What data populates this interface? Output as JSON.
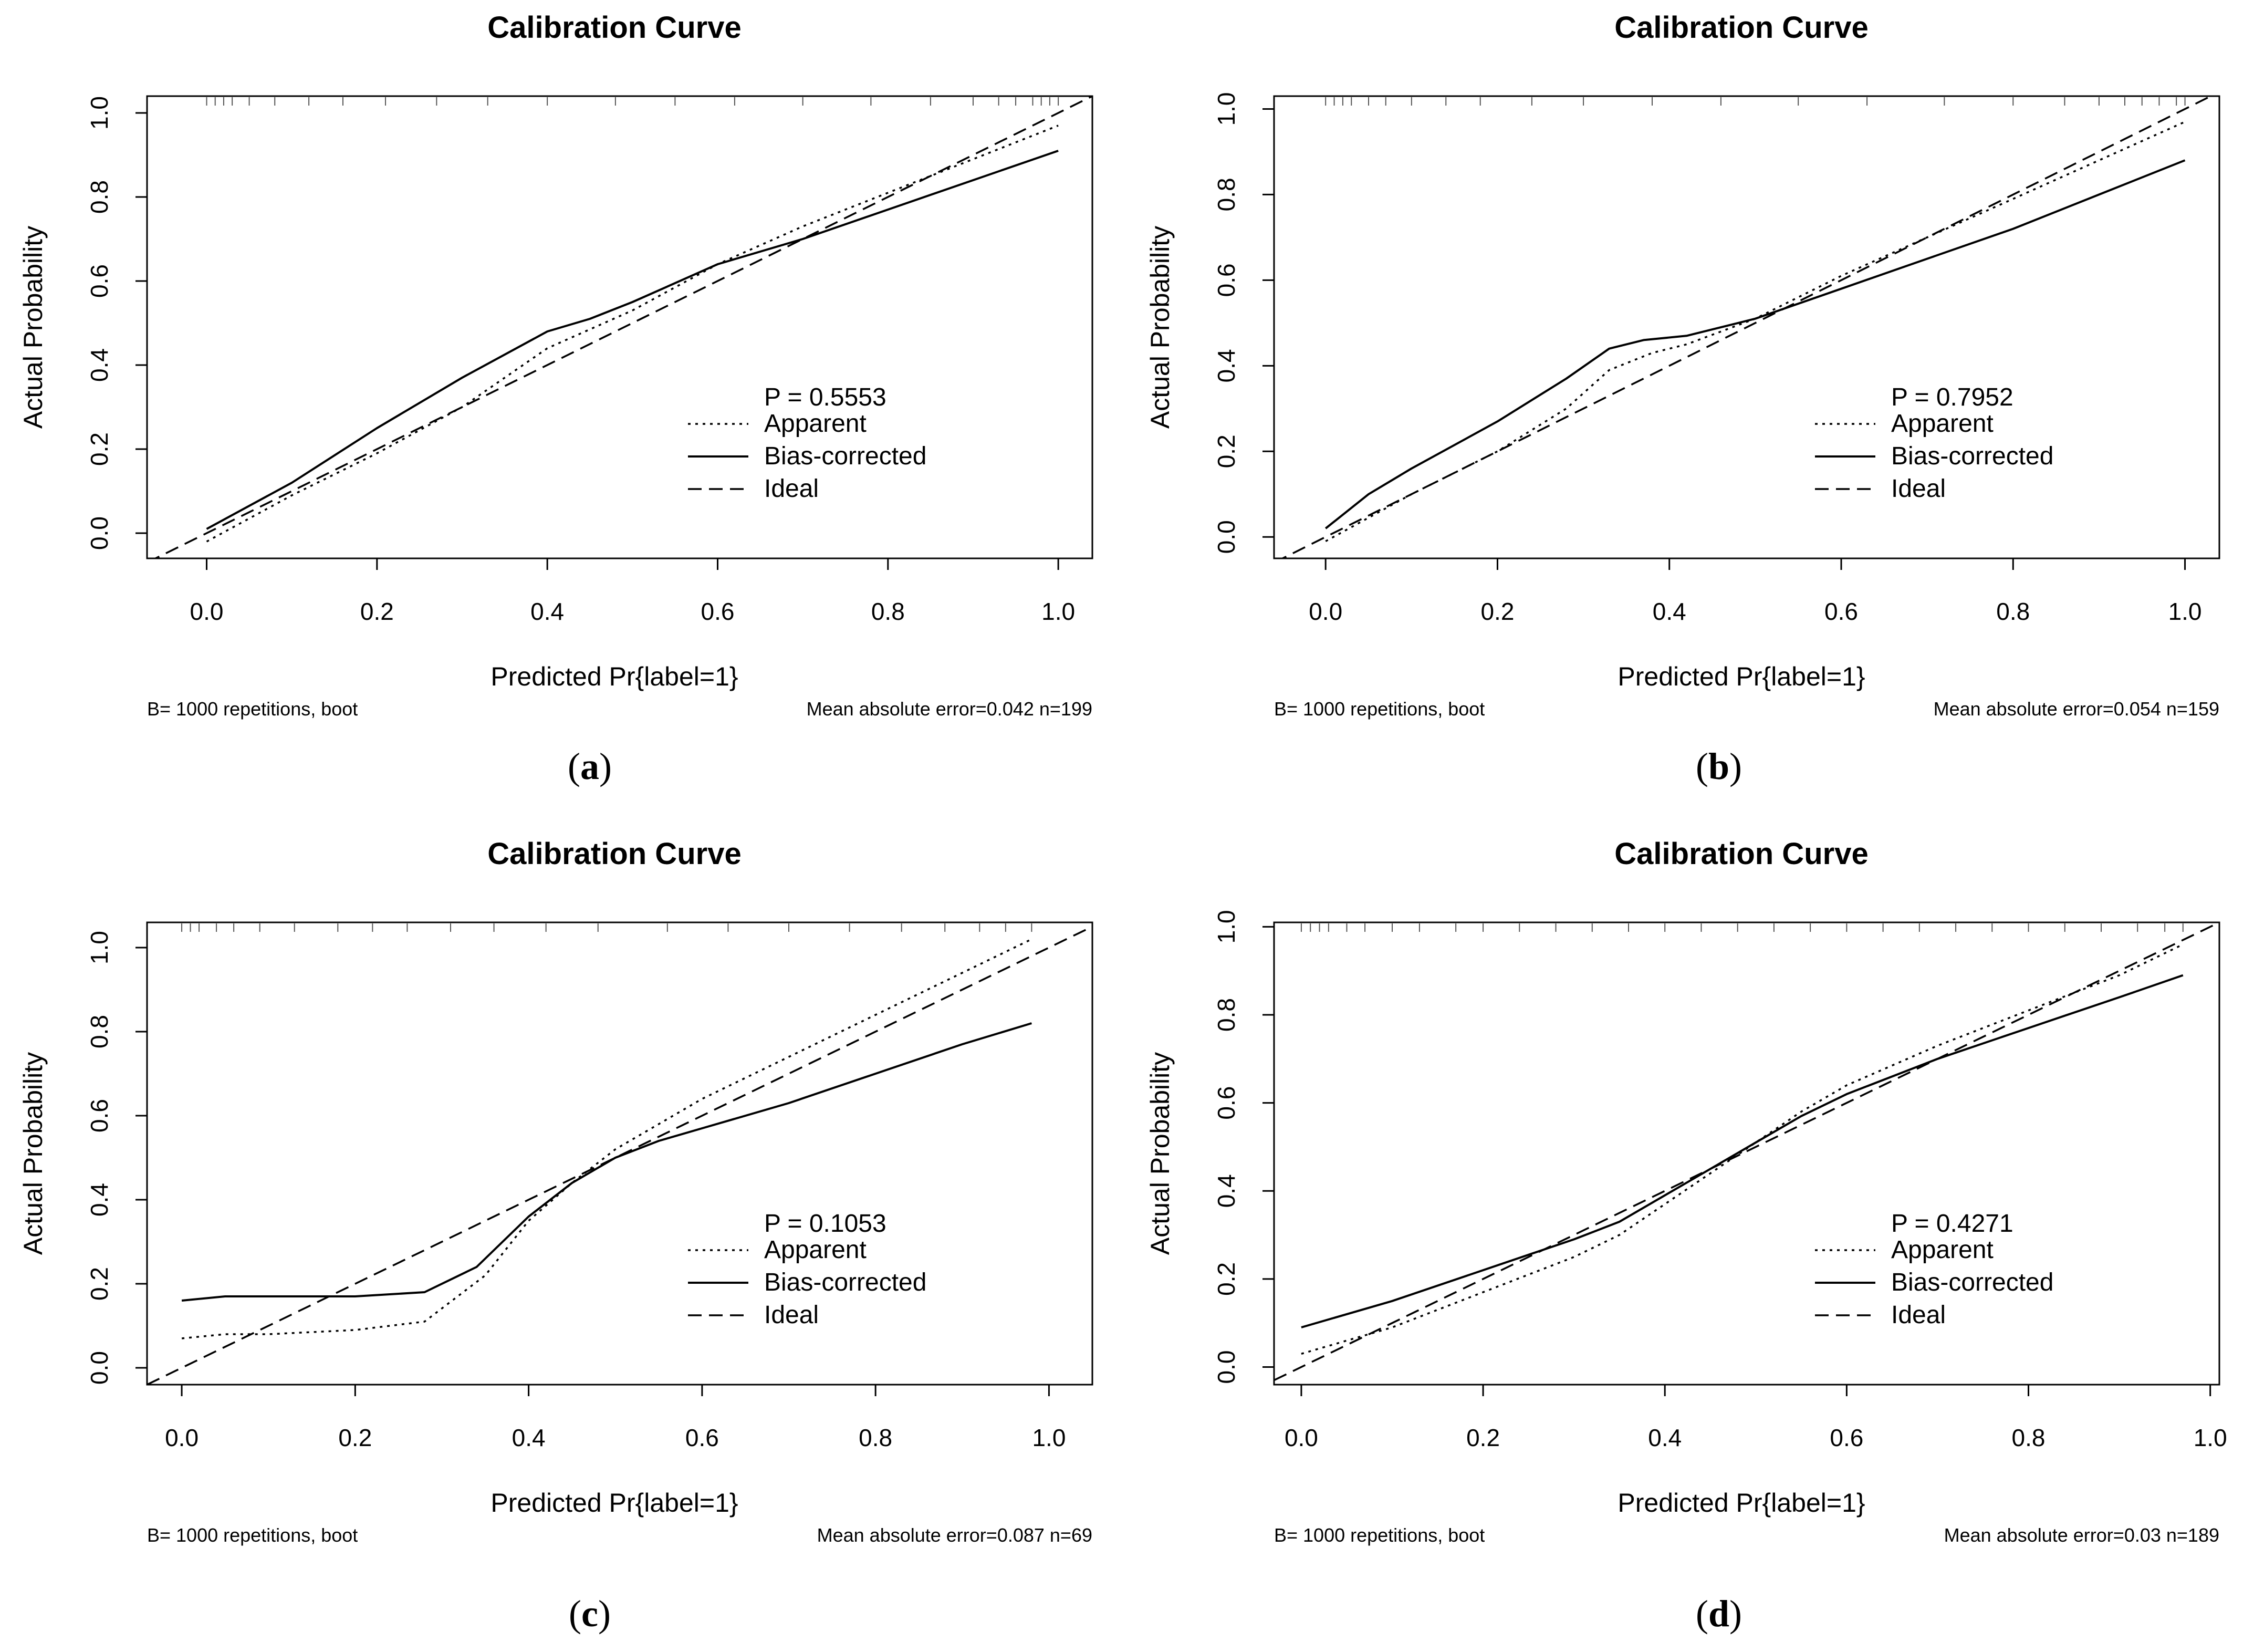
{
  "figure": {
    "panel_labels": [
      "a",
      "b",
      "c",
      "d"
    ]
  },
  "colors": {
    "line": "#000000",
    "rug": "#555555",
    "background": "#ffffff"
  },
  "chart_data": [
    {
      "type": "line",
      "title": "Calibration Curve",
      "xlabel": "Predicted Pr{label=1}",
      "ylabel": "Actual Probability",
      "xlim": [
        -0.07,
        1.04
      ],
      "ylim": [
        -0.06,
        1.04
      ],
      "xticks": [
        0.0,
        0.2,
        0.4,
        0.6,
        0.8,
        1.0
      ],
      "yticks": [
        0.0,
        0.2,
        0.4,
        0.6,
        0.8,
        1.0
      ],
      "tick_labels_x": [
        "0.0",
        "0.2",
        "0.4",
        "0.6",
        "0.8",
        "1.0"
      ],
      "tick_labels_y": [
        "0.0",
        "0.2",
        "0.4",
        "0.6",
        "0.8",
        "1.0"
      ],
      "legend_p": "P = 0.5553",
      "legend": [
        "Apparent",
        "Bias-corrected",
        "Ideal"
      ],
      "legend_position": "bottom-right",
      "note_left": "B= 1000 repetitions, boot",
      "note_right": "Mean absolute error=0.042 n=199",
      "series": [
        {
          "name": "Apparent",
          "style": "dotted",
          "x": [
            0.0,
            0.1,
            0.2,
            0.3,
            0.4,
            0.5,
            0.6,
            0.7,
            0.8,
            0.9,
            1.0
          ],
          "y": [
            -0.02,
            0.09,
            0.19,
            0.3,
            0.44,
            0.53,
            0.64,
            0.73,
            0.81,
            0.89,
            0.97
          ]
        },
        {
          "name": "Bias-corrected",
          "style": "solid",
          "x": [
            0.0,
            0.1,
            0.2,
            0.3,
            0.4,
            0.45,
            0.5,
            0.6,
            0.7,
            0.8,
            0.9,
            1.0
          ],
          "y": [
            0.01,
            0.12,
            0.25,
            0.37,
            0.48,
            0.51,
            0.55,
            0.64,
            0.7,
            0.77,
            0.84,
            0.91
          ]
        },
        {
          "name": "Ideal",
          "style": "dashed",
          "x": [
            -0.07,
            1.04
          ],
          "y": [
            -0.07,
            1.04
          ]
        }
      ],
      "rug_x": [
        0.0,
        0.01,
        0.02,
        0.03,
        0.05,
        0.08,
        0.12,
        0.16,
        0.21,
        0.27,
        0.33,
        0.4,
        0.48,
        0.55,
        0.62,
        0.7,
        0.78,
        0.85,
        0.9,
        0.93,
        0.95,
        0.97,
        0.98,
        0.99,
        1.0
      ]
    },
    {
      "type": "line",
      "title": "Calibration Curve",
      "xlabel": "Predicted Pr{label=1}",
      "ylabel": "Actual Probability",
      "xlim": [
        -0.06,
        1.04
      ],
      "ylim": [
        -0.05,
        1.03
      ],
      "xticks": [
        0.0,
        0.2,
        0.4,
        0.6,
        0.8,
        1.0
      ],
      "yticks": [
        0.0,
        0.2,
        0.4,
        0.6,
        0.8,
        1.0
      ],
      "tick_labels_x": [
        "0.0",
        "0.2",
        "0.4",
        "0.6",
        "0.8",
        "1.0"
      ],
      "tick_labels_y": [
        "0.0",
        "0.2",
        "0.4",
        "0.6",
        "0.8",
        "1.0"
      ],
      "legend_p": "P = 0.7952",
      "legend": [
        "Apparent",
        "Bias-corrected",
        "Ideal"
      ],
      "legend_position": "bottom-right",
      "note_left": "B= 1000 repetitions, boot",
      "note_right": "Mean absolute error=0.054 n=159",
      "series": [
        {
          "name": "Apparent",
          "style": "dotted",
          "x": [
            0.0,
            0.1,
            0.2,
            0.28,
            0.33,
            0.38,
            0.42,
            0.5,
            0.6,
            0.7,
            0.8,
            0.9,
            1.0
          ],
          "y": [
            -0.01,
            0.1,
            0.2,
            0.3,
            0.39,
            0.43,
            0.45,
            0.51,
            0.61,
            0.7,
            0.79,
            0.88,
            0.97
          ]
        },
        {
          "name": "Bias-corrected",
          "style": "solid",
          "x": [
            0.0,
            0.05,
            0.1,
            0.2,
            0.28,
            0.33,
            0.37,
            0.42,
            0.5,
            0.6,
            0.7,
            0.8,
            0.9,
            1.0
          ],
          "y": [
            0.02,
            0.1,
            0.16,
            0.27,
            0.37,
            0.44,
            0.46,
            0.47,
            0.51,
            0.58,
            0.65,
            0.72,
            0.8,
            0.88
          ]
        },
        {
          "name": "Ideal",
          "style": "dashed",
          "x": [
            -0.06,
            1.04
          ],
          "y": [
            -0.06,
            1.04
          ]
        }
      ],
      "rug_x": [
        0.0,
        0.01,
        0.02,
        0.03,
        0.05,
        0.07,
        0.1,
        0.14,
        0.18,
        0.24,
        0.3,
        0.38,
        0.46,
        0.55,
        0.63,
        0.72,
        0.8,
        0.86,
        0.9,
        0.93,
        0.95,
        0.97,
        0.99,
        1.0
      ]
    },
    {
      "type": "line",
      "title": "Calibration Curve",
      "xlabel": "Predicted Pr{label=1}",
      "ylabel": "Actual Probability",
      "xlim": [
        -0.04,
        1.05
      ],
      "ylim": [
        -0.04,
        1.06
      ],
      "xticks": [
        0.0,
        0.2,
        0.4,
        0.6,
        0.8,
        1.0
      ],
      "yticks": [
        0.0,
        0.2,
        0.4,
        0.6,
        0.8,
        1.0
      ],
      "tick_labels_x": [
        "0.0",
        "0.2",
        "0.4",
        "0.6",
        "0.8",
        "1.0"
      ],
      "tick_labels_y": [
        "0.0",
        "0.2",
        "0.4",
        "0.6",
        "0.8",
        "1.0"
      ],
      "legend_p": "P = 0.1053",
      "legend": [
        "Apparent",
        "Bias-corrected",
        "Ideal"
      ],
      "legend_position": "bottom-right",
      "note_left": "B= 1000 repetitions, boot",
      "note_right": "Mean absolute error=0.087 n=69",
      "series": [
        {
          "name": "Apparent",
          "style": "dotted",
          "x": [
            0.0,
            0.05,
            0.1,
            0.2,
            0.28,
            0.35,
            0.4,
            0.45,
            0.5,
            0.6,
            0.7,
            0.8,
            0.9,
            0.98
          ],
          "y": [
            0.07,
            0.08,
            0.08,
            0.09,
            0.11,
            0.22,
            0.35,
            0.44,
            0.52,
            0.64,
            0.74,
            0.84,
            0.94,
            1.02
          ]
        },
        {
          "name": "Bias-corrected",
          "style": "solid",
          "x": [
            0.0,
            0.05,
            0.1,
            0.2,
            0.28,
            0.34,
            0.4,
            0.45,
            0.5,
            0.55,
            0.6,
            0.7,
            0.8,
            0.9,
            0.98
          ],
          "y": [
            0.16,
            0.17,
            0.17,
            0.17,
            0.18,
            0.24,
            0.36,
            0.44,
            0.5,
            0.54,
            0.57,
            0.63,
            0.7,
            0.77,
            0.82
          ]
        },
        {
          "name": "Ideal",
          "style": "dashed",
          "x": [
            -0.04,
            1.05
          ],
          "y": [
            -0.04,
            1.05
          ]
        }
      ],
      "rug_x": [
        0.0,
        0.01,
        0.02,
        0.04,
        0.06,
        0.09,
        0.13,
        0.18,
        0.22,
        0.26,
        0.31,
        0.36,
        0.42,
        0.48,
        0.56,
        0.63,
        0.7,
        0.77,
        0.83,
        0.88,
        0.92,
        0.95,
        0.98
      ]
    },
    {
      "type": "line",
      "title": "Calibration Curve",
      "xlabel": "Predicted Pr{label=1}",
      "ylabel": "Actual Probability",
      "xlim": [
        -0.03,
        1.01
      ],
      "ylim": [
        -0.04,
        1.01
      ],
      "xticks": [
        0.0,
        0.2,
        0.4,
        0.6,
        0.8,
        1.0
      ],
      "yticks": [
        0.0,
        0.2,
        0.4,
        0.6,
        0.8,
        1.0
      ],
      "tick_labels_x": [
        "0.0",
        "0.2",
        "0.4",
        "0.6",
        "0.8",
        "1.0"
      ],
      "tick_labels_y": [
        "0.0",
        "0.2",
        "0.4",
        "0.6",
        "0.8",
        "1.0"
      ],
      "legend_p": "P = 0.4271",
      "legend": [
        "Apparent",
        "Bias-corrected",
        "Ideal"
      ],
      "legend_position": "bottom-right",
      "note_left": "B= 1000 repetitions, boot",
      "note_right": "Mean absolute error=0.03 n=189",
      "series": [
        {
          "name": "Apparent",
          "style": "dotted",
          "x": [
            0.0,
            0.1,
            0.2,
            0.3,
            0.35,
            0.4,
            0.45,
            0.5,
            0.55,
            0.6,
            0.7,
            0.8,
            0.9,
            0.97
          ],
          "y": [
            0.03,
            0.09,
            0.17,
            0.25,
            0.3,
            0.37,
            0.44,
            0.51,
            0.58,
            0.64,
            0.73,
            0.81,
            0.89,
            0.96
          ]
        },
        {
          "name": "Bias-corrected",
          "style": "solid",
          "x": [
            0.0,
            0.1,
            0.2,
            0.3,
            0.35,
            0.4,
            0.45,
            0.5,
            0.55,
            0.6,
            0.7,
            0.8,
            0.9,
            0.97
          ],
          "y": [
            0.09,
            0.15,
            0.22,
            0.29,
            0.33,
            0.39,
            0.45,
            0.51,
            0.57,
            0.62,
            0.7,
            0.77,
            0.84,
            0.89
          ]
        },
        {
          "name": "Ideal",
          "style": "dashed",
          "x": [
            -0.03,
            1.01
          ],
          "y": [
            -0.03,
            1.01
          ]
        }
      ],
      "rug_x": [
        0.0,
        0.01,
        0.02,
        0.03,
        0.05,
        0.07,
        0.1,
        0.13,
        0.17,
        0.2,
        0.24,
        0.28,
        0.32,
        0.36,
        0.4,
        0.44,
        0.48,
        0.52,
        0.56,
        0.6,
        0.64,
        0.68,
        0.72,
        0.76,
        0.8,
        0.84,
        0.88,
        0.92,
        0.95,
        0.97
      ]
    }
  ]
}
